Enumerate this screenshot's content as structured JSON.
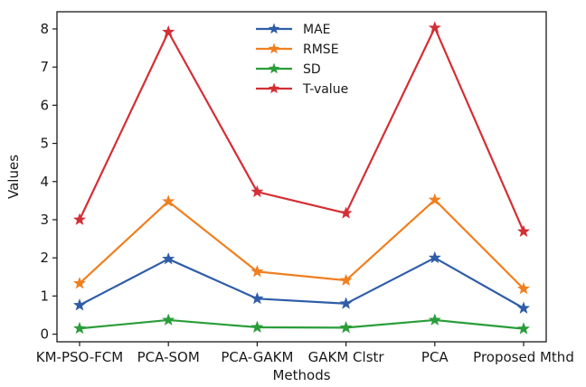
{
  "chart_data": {
    "type": "line",
    "title": "",
    "xlabel": "Methods",
    "ylabel": "Values",
    "categories": [
      "KM-PSO-FCM",
      "PCA-SOM",
      "PCA-GAKM",
      "GAKM Clstr",
      "PCA",
      "Proposed Mthd"
    ],
    "ylim": [
      -0.2,
      8.45
    ],
    "yticks": [
      0,
      1,
      2,
      3,
      4,
      5,
      6,
      7,
      8
    ],
    "grid": false,
    "legend": "top-center",
    "marker": "star",
    "series": [
      {
        "name": "MAE",
        "color": "#2f5da8",
        "values": [
          0.76,
          1.97,
          0.93,
          0.8,
          2.0,
          0.68
        ]
      },
      {
        "name": "RMSE",
        "color": "#f07f1f",
        "values": [
          1.33,
          3.48,
          1.64,
          1.41,
          3.52,
          1.19
        ]
      },
      {
        "name": "SD",
        "color": "#2a9d3a",
        "values": [
          0.15,
          0.37,
          0.18,
          0.17,
          0.37,
          0.14
        ]
      },
      {
        "name": "T-value",
        "color": "#d32f35",
        "values": [
          3.0,
          7.92,
          3.73,
          3.17,
          8.03,
          2.69
        ]
      }
    ]
  }
}
